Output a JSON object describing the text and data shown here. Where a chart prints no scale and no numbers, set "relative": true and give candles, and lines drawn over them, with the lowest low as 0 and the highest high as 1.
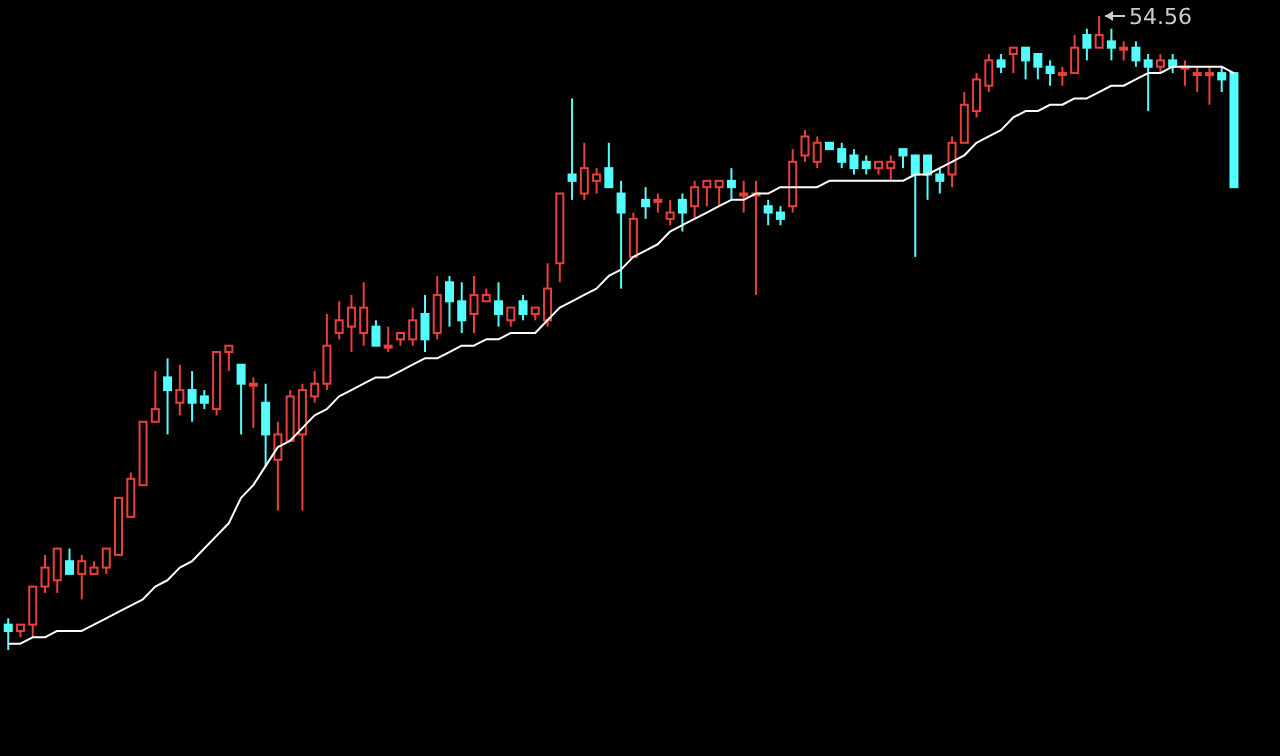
{
  "chart_data": {
    "type": "candlestick",
    "relative": true,
    "tick_labels": false,
    "categories": [
      null,
      null,
      null,
      null,
      null,
      null,
      null,
      null,
      null,
      null,
      null,
      null,
      null,
      null,
      null,
      null,
      null,
      null,
      null,
      null,
      null,
      null,
      null,
      null,
      null,
      null,
      null,
      null,
      null,
      null,
      null,
      null,
      null,
      null,
      null,
      null,
      null,
      null,
      null,
      null,
      null,
      null,
      null,
      null,
      null,
      null,
      null,
      null,
      null,
      null,
      null,
      null,
      null,
      null,
      null,
      null,
      null,
      null,
      null,
      null,
      null,
      null,
      null,
      null,
      null,
      null,
      null,
      null,
      null,
      null,
      null,
      null,
      null,
      null,
      null,
      null,
      null,
      null,
      null,
      null,
      null,
      null,
      null,
      null,
      null,
      null,
      null,
      null,
      null,
      null,
      null,
      null,
      null,
      null,
      null,
      null,
      null,
      null,
      null,
      null,
      null
    ],
    "ohlc": [
      [
        0.04,
        0.05,
        0,
        0.03
      ],
      [
        0.03,
        0.04,
        0.02,
        0.04
      ],
      [
        0.04,
        0.1,
        0.02,
        0.1
      ],
      [
        0.1,
        0.15,
        0.09,
        0.13
      ],
      [
        0.11,
        0.16,
        0.09,
        0.16
      ],
      [
        0.14,
        0.16,
        0.12,
        0.12
      ],
      [
        0.12,
        0.15,
        0.08,
        0.14
      ],
      [
        0.12,
        0.14,
        0.12,
        0.13
      ],
      [
        0.13,
        0.16,
        0.12,
        0.16
      ],
      [
        0.15,
        0.24,
        0.15,
        0.24
      ],
      [
        0.21,
        0.28,
        0.21,
        0.27
      ],
      [
        0.26,
        0.36,
        0.26,
        0.36
      ],
      [
        0.36,
        0.44,
        0.36,
        0.38
      ],
      [
        0.43,
        0.46,
        0.34,
        0.41
      ],
      [
        0.39,
        0.45,
        0.37,
        0.41
      ],
      [
        0.41,
        0.44,
        0.36,
        0.39
      ],
      [
        0.4,
        0.41,
        0.38,
        0.39
      ],
      [
        0.38,
        0.47,
        0.37,
        0.47
      ],
      [
        0.47,
        0.48,
        0.44,
        0.48
      ],
      [
        0.45,
        0.45,
        0.34,
        0.42
      ],
      [
        0.42,
        0.43,
        0.35,
        0.42
      ],
      [
        0.39,
        0.42,
        0.29,
        0.34
      ],
      [
        0.3,
        0.36,
        0.22,
        0.34
      ],
      [
        0.33,
        0.41,
        0.33,
        0.4
      ],
      [
        0.34,
        0.42,
        0.22,
        0.41
      ],
      [
        0.4,
        0.44,
        0.39,
        0.42
      ],
      [
        0.42,
        0.53,
        0.41,
        0.48
      ],
      [
        0.5,
        0.55,
        0.49,
        0.52
      ],
      [
        0.51,
        0.56,
        0.47,
        0.54
      ],
      [
        0.5,
        0.58,
        0.48,
        0.54
      ],
      [
        0.51,
        0.52,
        0.48,
        0.48
      ],
      [
        0.48,
        0.51,
        0.47,
        0.48
      ],
      [
        0.49,
        0.5,
        0.48,
        0.5
      ],
      [
        0.49,
        0.54,
        0.48,
        0.52
      ],
      [
        0.53,
        0.56,
        0.47,
        0.49
      ],
      [
        0.5,
        0.59,
        0.49,
        0.56
      ],
      [
        0.58,
        0.59,
        0.51,
        0.55
      ],
      [
        0.55,
        0.58,
        0.5,
        0.52
      ],
      [
        0.53,
        0.59,
        0.5,
        0.56
      ],
      [
        0.55,
        0.57,
        0.55,
        0.56
      ],
      [
        0.55,
        0.58,
        0.51,
        0.53
      ],
      [
        0.52,
        0.54,
        0.51,
        0.54
      ],
      [
        0.55,
        0.56,
        0.52,
        0.53
      ],
      [
        0.53,
        0.54,
        0.52,
        0.54
      ],
      [
        0.52,
        0.61,
        0.51,
        0.57
      ],
      [
        0.61,
        0.72,
        0.58,
        0.72
      ],
      [
        0.75,
        0.87,
        0.71,
        0.74
      ],
      [
        0.72,
        0.8,
        0.71,
        0.76
      ],
      [
        0.74,
        0.76,
        0.72,
        0.75
      ],
      [
        0.76,
        0.8,
        0.73,
        0.73
      ],
      [
        0.72,
        0.74,
        0.57,
        0.69
      ],
      [
        0.62,
        0.69,
        0.62,
        0.68
      ],
      [
        0.71,
        0.73,
        0.68,
        0.7
      ],
      [
        0.71,
        0.72,
        0.69,
        0.71
      ],
      [
        0.68,
        0.71,
        0.67,
        0.69
      ],
      [
        0.71,
        0.72,
        0.66,
        0.69
      ],
      [
        0.7,
        0.74,
        0.68,
        0.73
      ],
      [
        0.73,
        0.74,
        0.7,
        0.74
      ],
      [
        0.73,
        0.74,
        0.7,
        0.74
      ],
      [
        0.74,
        0.76,
        0.71,
        0.73
      ],
      [
        0.72,
        0.74,
        0.69,
        0.72
      ],
      [
        0.72,
        0.74,
        0.56,
        0.72
      ],
      [
        0.7,
        0.71,
        0.67,
        0.69
      ],
      [
        0.69,
        0.7,
        0.67,
        0.68
      ],
      [
        0.7,
        0.79,
        0.69,
        0.77
      ],
      [
        0.78,
        0.82,
        0.77,
        0.81
      ],
      [
        0.77,
        0.81,
        0.76,
        0.8
      ],
      [
        0.8,
        0.8,
        0.79,
        0.79
      ],
      [
        0.79,
        0.8,
        0.76,
        0.77
      ],
      [
        0.78,
        0.79,
        0.75,
        0.76
      ],
      [
        0.77,
        0.78,
        0.75,
        0.76
      ],
      [
        0.76,
        0.77,
        0.75,
        0.77
      ],
      [
        0.76,
        0.78,
        0.74,
        0.77
      ],
      [
        0.79,
        0.79,
        0.76,
        0.78
      ],
      [
        0.78,
        0.78,
        0.62,
        0.75
      ],
      [
        0.78,
        0.78,
        0.71,
        0.75
      ],
      [
        0.75,
        0.76,
        0.72,
        0.74
      ],
      [
        0.75,
        0.81,
        0.73,
        0.8
      ],
      [
        0.8,
        0.88,
        0.8,
        0.86
      ],
      [
        0.85,
        0.91,
        0.84,
        0.9
      ],
      [
        0.89,
        0.94,
        0.88,
        0.93
      ],
      [
        0.93,
        0.94,
        0.91,
        0.92
      ],
      [
        0.94,
        0.95,
        0.91,
        0.95
      ],
      [
        0.95,
        0.95,
        0.9,
        0.93
      ],
      [
        0.94,
        0.94,
        0.9,
        0.92
      ],
      [
        0.92,
        0.93,
        0.89,
        0.91
      ],
      [
        0.91,
        0.92,
        0.89,
        0.91
      ],
      [
        0.91,
        0.97,
        0.91,
        0.95
      ],
      [
        0.97,
        0.98,
        0.93,
        0.95
      ],
      [
        0.95,
        1.0,
        0.95,
        0.97
      ],
      [
        0.96,
        0.98,
        0.93,
        0.95
      ],
      [
        0.95,
        0.96,
        0.93,
        0.95
      ],
      [
        0.95,
        0.96,
        0.92,
        0.93
      ],
      [
        0.93,
        0.94,
        0.85,
        0.92
      ],
      [
        0.92,
        0.94,
        0.91,
        0.93
      ],
      [
        0.93,
        0.94,
        0.91,
        0.92
      ],
      [
        0.92,
        0.93,
        0.89,
        0.92
      ],
      [
        0.91,
        0.92,
        0.88,
        0.91
      ],
      [
        0.91,
        0.92,
        0.86,
        0.91
      ],
      [
        0.91,
        0.92,
        0.88,
        0.9
      ],
      [
        0.91,
        0.91,
        0.73,
        0.73
      ]
    ],
    "series": [
      {
        "type": "line",
        "color": "#ffffff",
        "values": [
          0.01,
          0.01,
          0.02,
          0.02,
          0.03,
          0.03,
          0.03,
          0.04,
          0.05,
          0.06,
          0.07,
          0.08,
          0.1,
          0.11,
          0.13,
          0.14,
          0.16,
          0.18,
          0.2,
          0.24,
          0.26,
          0.29,
          0.32,
          0.33,
          0.35,
          0.37,
          0.38,
          0.4,
          0.41,
          0.42,
          0.43,
          0.43,
          0.44,
          0.45,
          0.46,
          0.46,
          0.47,
          0.48,
          0.48,
          0.49,
          0.49,
          0.5,
          0.5,
          0.5,
          0.52,
          0.54,
          0.55,
          0.56,
          0.57,
          0.59,
          0.6,
          0.62,
          0.63,
          0.64,
          0.66,
          0.67,
          0.68,
          0.69,
          0.7,
          0.71,
          0.71,
          0.72,
          0.72,
          0.73,
          0.73,
          0.73,
          0.73,
          0.74,
          0.74,
          0.74,
          0.74,
          0.74,
          0.74,
          0.74,
          0.75,
          0.75,
          0.76,
          0.77,
          0.78,
          0.8,
          0.81,
          0.82,
          0.84,
          0.85,
          0.85,
          0.86,
          0.86,
          0.87,
          0.87,
          0.88,
          0.89,
          0.89,
          0.9,
          0.91,
          0.91,
          0.92,
          0.92,
          0.92,
          0.92,
          0.92,
          0.91
        ]
      }
    ],
    "annotations": [
      "54.56"
    ]
  }
}
